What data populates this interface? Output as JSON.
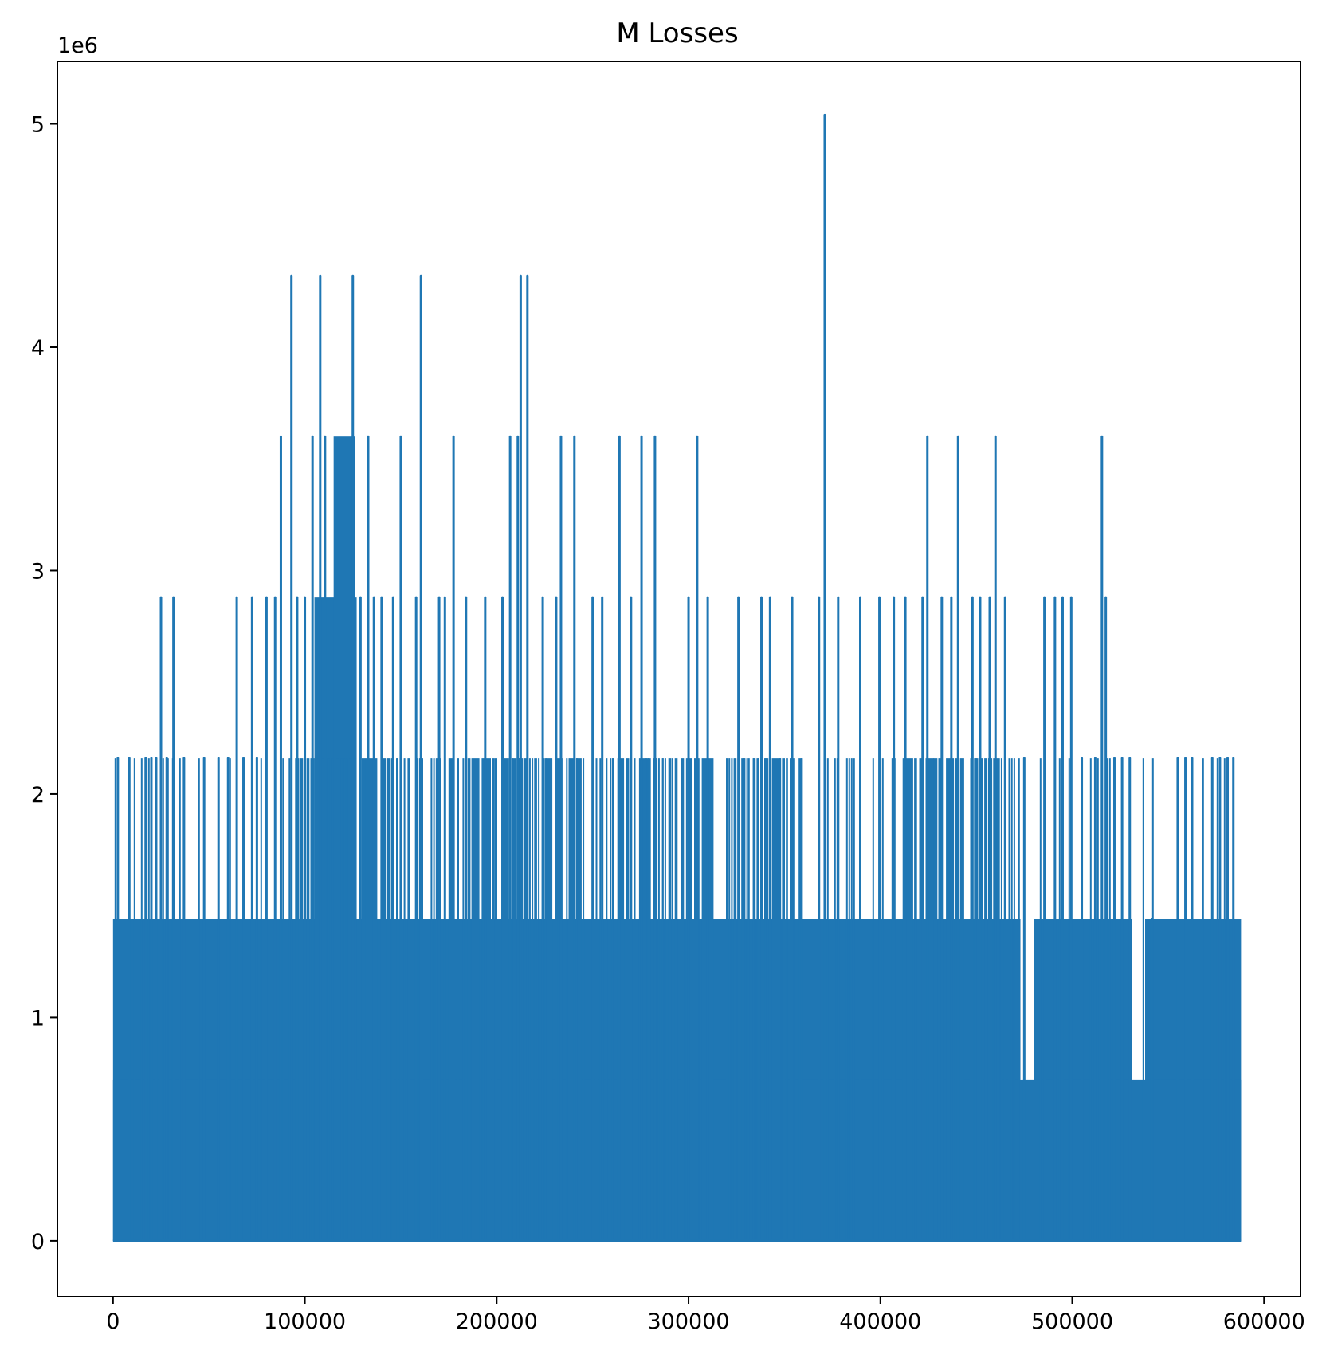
{
  "chart_data": {
    "type": "line",
    "title": "M Losses",
    "xlabel": "",
    "ylabel": "",
    "y_offset_label": "1e6",
    "grid": false,
    "color": "#1f77b4",
    "xlim": [
      -29000,
      619000
    ],
    "ylim": [
      -250000,
      5280000
    ],
    "xticks": [
      0,
      100000,
      200000,
      300000,
      400000,
      500000,
      600000
    ],
    "xtick_labels": [
      "0",
      "100000",
      "200000",
      "300000",
      "400000",
      "500000",
      "600000"
    ],
    "yticks": [
      0,
      1000000,
      2000000,
      3000000,
      4000000,
      5000000
    ],
    "ytick_labels": [
      "0",
      "1",
      "2",
      "3",
      "4",
      "5"
    ],
    "x_range": [
      0,
      588000
    ],
    "baseline_level": 720000,
    "dense_bands": [
      {
        "x": [
          0,
          473000
        ],
        "level": 1440000
      },
      {
        "x": [
          474000,
          480000
        ],
        "level": 720000
      },
      {
        "x": [
          480000,
          531000
        ],
        "level": 1440000
      },
      {
        "x": [
          531000,
          538000
        ],
        "level": 720000
      },
      {
        "x": [
          538000,
          588000
        ],
        "level": 1440000
      },
      {
        "x": [
          105000,
          127000
        ],
        "level": 2880000
      },
      {
        "x": [
          115000,
          126000
        ],
        "level": 3600000
      }
    ],
    "peaks": [
      {
        "x": 2500,
        "y": 2160000
      },
      {
        "x": 8500,
        "y": 2160000
      },
      {
        "x": 17000,
        "y": 2160000
      },
      {
        "x": 20000,
        "y": 2160000
      },
      {
        "x": 22500,
        "y": 2160000
      },
      {
        "x": 25000,
        "y": 2880000
      },
      {
        "x": 28000,
        "y": 2160000
      },
      {
        "x": 31500,
        "y": 2880000
      },
      {
        "x": 37000,
        "y": 2160000
      },
      {
        "x": 47500,
        "y": 2160000
      },
      {
        "x": 55000,
        "y": 2160000
      },
      {
        "x": 60000,
        "y": 2160000
      },
      {
        "x": 64500,
        "y": 2880000
      },
      {
        "x": 68000,
        "y": 2160000
      },
      {
        "x": 72500,
        "y": 2880000
      },
      {
        "x": 75000,
        "y": 2160000
      },
      {
        "x": 80000,
        "y": 2880000
      },
      {
        "x": 84500,
        "y": 2880000
      },
      {
        "x": 87500,
        "y": 3600000
      },
      {
        "x": 93000,
        "y": 4320000
      },
      {
        "x": 96000,
        "y": 2880000
      },
      {
        "x": 100000,
        "y": 2880000
      },
      {
        "x": 104000,
        "y": 3600000
      },
      {
        "x": 108000,
        "y": 4320000
      },
      {
        "x": 110500,
        "y": 3600000
      },
      {
        "x": 125000,
        "y": 4320000
      },
      {
        "x": 129000,
        "y": 2880000
      },
      {
        "x": 133000,
        "y": 3600000
      },
      {
        "x": 136000,
        "y": 2880000
      },
      {
        "x": 140000,
        "y": 2880000
      },
      {
        "x": 146000,
        "y": 2880000
      },
      {
        "x": 150000,
        "y": 3600000
      },
      {
        "x": 158000,
        "y": 2880000
      },
      {
        "x": 160500,
        "y": 4320000
      },
      {
        "x": 170000,
        "y": 2880000
      },
      {
        "x": 173000,
        "y": 2880000
      },
      {
        "x": 177500,
        "y": 3600000
      },
      {
        "x": 184000,
        "y": 2880000
      },
      {
        "x": 194000,
        "y": 2880000
      },
      {
        "x": 203000,
        "y": 2880000
      },
      {
        "x": 207000,
        "y": 3600000
      },
      {
        "x": 211000,
        "y": 3600000
      },
      {
        "x": 212500,
        "y": 4320000
      },
      {
        "x": 216000,
        "y": 4320000
      },
      {
        "x": 224000,
        "y": 2880000
      },
      {
        "x": 231000,
        "y": 2880000
      },
      {
        "x": 233500,
        "y": 3600000
      },
      {
        "x": 240500,
        "y": 3600000
      },
      {
        "x": 250000,
        "y": 2880000
      },
      {
        "x": 255000,
        "y": 2880000
      },
      {
        "x": 264000,
        "y": 3600000
      },
      {
        "x": 270000,
        "y": 2880000
      },
      {
        "x": 275500,
        "y": 3600000
      },
      {
        "x": 282500,
        "y": 3600000
      },
      {
        "x": 300000,
        "y": 2880000
      },
      {
        "x": 304500,
        "y": 3600000
      },
      {
        "x": 310000,
        "y": 2880000
      },
      {
        "x": 326000,
        "y": 2880000
      },
      {
        "x": 338000,
        "y": 2880000
      },
      {
        "x": 342500,
        "y": 2880000
      },
      {
        "x": 354000,
        "y": 2880000
      },
      {
        "x": 368000,
        "y": 2880000
      },
      {
        "x": 371000,
        "y": 5040000
      },
      {
        "x": 378000,
        "y": 2880000
      },
      {
        "x": 389500,
        "y": 2880000
      },
      {
        "x": 399500,
        "y": 2880000
      },
      {
        "x": 407000,
        "y": 2880000
      },
      {
        "x": 413000,
        "y": 2880000
      },
      {
        "x": 422000,
        "y": 2880000
      },
      {
        "x": 424500,
        "y": 3600000
      },
      {
        "x": 432000,
        "y": 2880000
      },
      {
        "x": 437000,
        "y": 2880000
      },
      {
        "x": 440500,
        "y": 3600000
      },
      {
        "x": 448000,
        "y": 2880000
      },
      {
        "x": 452000,
        "y": 2880000
      },
      {
        "x": 457000,
        "y": 2880000
      },
      {
        "x": 460000,
        "y": 3600000
      },
      {
        "x": 465000,
        "y": 2880000
      },
      {
        "x": 475000,
        "y": 2160000
      },
      {
        "x": 485500,
        "y": 2880000
      },
      {
        "x": 491000,
        "y": 2880000
      },
      {
        "x": 495000,
        "y": 2880000
      },
      {
        "x": 499500,
        "y": 2880000
      },
      {
        "x": 505000,
        "y": 2160000
      },
      {
        "x": 512000,
        "y": 2160000
      },
      {
        "x": 515500,
        "y": 3600000
      },
      {
        "x": 517500,
        "y": 2880000
      },
      {
        "x": 522000,
        "y": 2160000
      },
      {
        "x": 526000,
        "y": 2160000
      },
      {
        "x": 530000,
        "y": 2160000
      },
      {
        "x": 541500,
        "y": 1440000
      },
      {
        "x": 555000,
        "y": 2160000
      },
      {
        "x": 559000,
        "y": 2160000
      },
      {
        "x": 562500,
        "y": 2160000
      },
      {
        "x": 573000,
        "y": 2160000
      },
      {
        "x": 577000,
        "y": 2160000
      },
      {
        "x": 581000,
        "y": 2160000
      },
      {
        "x": 584000,
        "y": 2160000
      }
    ],
    "level_2160000_spans": [
      [
        88000,
        127000
      ],
      [
        130000,
        162000
      ],
      [
        166000,
        200000
      ],
      [
        204000,
        248000
      ],
      [
        252000,
        298000
      ],
      [
        300000,
        360000
      ],
      [
        412000,
        470000
      ]
    ]
  }
}
